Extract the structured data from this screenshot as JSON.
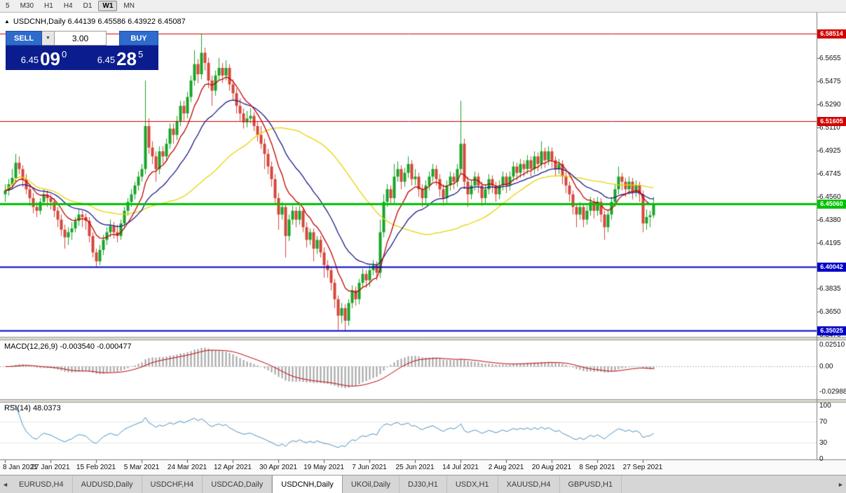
{
  "toolbar": {
    "items": [
      "5",
      "M30",
      "H1",
      "H4",
      "D1",
      "W1",
      "MN"
    ],
    "active": "W1"
  },
  "chart_header": {
    "marker": "▲",
    "text": "USDCNH,Daily 6.44139 6.45586 6.43922 6.45087"
  },
  "trade_widget": {
    "sell_label": "SELL",
    "buy_label": "BUY",
    "lot": "3.00",
    "dropdown_icon": "▼",
    "sell_price": {
      "prefix": "6.45",
      "pips": "09",
      "pipette": "0"
    },
    "buy_price": {
      "prefix": "6.45",
      "pips": "28",
      "pipette": "5"
    }
  },
  "price_axis": {
    "ticks": [
      "6.5655",
      "6.5475",
      "6.5290",
      "6.5110",
      "6.4925",
      "6.4745",
      "6.4560",
      "6.4380",
      "6.4195",
      "6.3835",
      "6.3650",
      "6.3470"
    ]
  },
  "time_axis": {
    "labels": [
      "8 Jan 2021",
      "27 Jan 2021",
      "15 Feb 2021",
      "5 Mar 2021",
      "24 Mar 2021",
      "12 Apr 2021",
      "30 Apr 2021",
      "19 May 2021",
      "7 Jun 2021",
      "25 Jun 2021",
      "14 Jul 2021",
      "2 Aug 2021",
      "20 Aug 2021",
      "8 Sep 2021",
      "27 Sep 2021"
    ]
  },
  "tabs": {
    "left_arrow": "◄",
    "right_arrow": "►",
    "active_index": 4,
    "items": [
      "EURUSD,H4",
      "AUDUSD,Daily",
      "USDCHF,H4",
      "USDCAD,Daily",
      "USDCNH,Daily",
      "UKOil,Daily",
      "DJ30,H1",
      "USDX,H1",
      "XAUUSD,H4",
      "GBPUSD,H1"
    ]
  },
  "chart_data": {
    "type": "candlestick",
    "symbol": "USDCNH",
    "timeframe": "Daily",
    "current_ohlc": {
      "open": "6.44139",
      "high": "6.45586",
      "low": "6.43922",
      "close": "6.45087"
    },
    "x_label_step": 13,
    "candle_colors": {
      "up": "#18a428",
      "down": "#d5473a"
    },
    "hlines": [
      {
        "price": 6.58514,
        "label": "6.58514",
        "color": "#d40000",
        "width": 1
      },
      {
        "price": 6.51605,
        "label": "6.51605",
        "color": "#d40000",
        "width": 1
      },
      {
        "price": 6.4506,
        "label": "6.45060",
        "color": "#00c300",
        "width": 3
      },
      {
        "price": 6.40042,
        "label": "6.40042",
        "color": "#0000c8",
        "width": 2
      },
      {
        "price": 6.35025,
        "label": "6.35025",
        "color": "#0000c8",
        "width": 2
      }
    ],
    "moving_averages": [
      {
        "name": "ma-slow",
        "method": "sma",
        "period": 45,
        "color": "#e8d400"
      },
      {
        "name": "ma-mid",
        "method": "ema",
        "period": 22,
        "color": "#1a1a8a"
      },
      {
        "name": "ma-fast",
        "method": "ema",
        "period": 9,
        "color": "#c00000"
      }
    ],
    "indicators": {
      "macd": {
        "label": "MACD(12,26,9) -0.003540 -0.000477",
        "params": [
          12,
          26,
          9
        ],
        "axis_ticks": [
          "0.02510",
          "0.00",
          "-0.02988"
        ],
        "hist_color": "#a0a0a0",
        "signal_color": "#c00000"
      },
      "rsi": {
        "label": "RSI(14) 48.0373",
        "period": 14,
        "value": "48.0373",
        "axis_ticks": [
          "100",
          "70",
          "30",
          "0"
        ],
        "levels": [
          70,
          30
        ],
        "color": "#4a90c2"
      }
    },
    "candles": [
      [
        6.458,
        6.466,
        6.452,
        6.461
      ],
      [
        6.461,
        6.47,
        6.457,
        6.466
      ],
      [
        6.466,
        6.478,
        6.462,
        6.471
      ],
      [
        6.471,
        6.49,
        6.468,
        6.483
      ],
      [
        6.483,
        6.488,
        6.474,
        6.478
      ],
      [
        6.478,
        6.481,
        6.464,
        6.47
      ],
      [
        6.47,
        6.474,
        6.458,
        6.462
      ],
      [
        6.462,
        6.466,
        6.449,
        6.455
      ],
      [
        6.455,
        6.459,
        6.443,
        6.448
      ],
      [
        6.448,
        6.452,
        6.44,
        6.445
      ],
      [
        6.445,
        6.455,
        6.442,
        6.452
      ],
      [
        6.452,
        6.462,
        6.449,
        6.458
      ],
      [
        6.458,
        6.461,
        6.448,
        6.455
      ],
      [
        6.455,
        6.458,
        6.446,
        6.452
      ],
      [
        6.452,
        6.455,
        6.44,
        6.445
      ],
      [
        6.445,
        6.448,
        6.432,
        6.438
      ],
      [
        6.438,
        6.442,
        6.425,
        6.43
      ],
      [
        6.43,
        6.434,
        6.415,
        6.424
      ],
      [
        6.424,
        6.432,
        6.418,
        6.428
      ],
      [
        6.428,
        6.436,
        6.422,
        6.431
      ],
      [
        6.431,
        6.44,
        6.428,
        6.437
      ],
      [
        6.437,
        6.446,
        6.433,
        6.442
      ],
      [
        6.442,
        6.445,
        6.432,
        6.44
      ],
      [
        6.44,
        6.443,
        6.43,
        6.437
      ],
      [
        6.437,
        6.44,
        6.42,
        6.425
      ],
      [
        6.425,
        6.428,
        6.408,
        6.412
      ],
      [
        6.412,
        6.415,
        6.4,
        6.405
      ],
      [
        6.405,
        6.418,
        6.402,
        6.414
      ],
      [
        6.414,
        6.426,
        6.41,
        6.422
      ],
      [
        6.422,
        6.432,
        6.418,
        6.428
      ],
      [
        6.428,
        6.438,
        6.424,
        6.433
      ],
      [
        6.433,
        6.436,
        6.423,
        6.428
      ],
      [
        6.428,
        6.434,
        6.42,
        6.425
      ],
      [
        6.425,
        6.438,
        6.422,
        6.435
      ],
      [
        6.435,
        6.448,
        6.431,
        6.445
      ],
      [
        6.445,
        6.455,
        6.441,
        6.452
      ],
      [
        6.452,
        6.462,
        6.448,
        6.458
      ],
      [
        6.458,
        6.468,
        6.454,
        6.465
      ],
      [
        6.465,
        6.476,
        6.461,
        6.472
      ],
      [
        6.472,
        6.482,
        6.468,
        6.478
      ],
      [
        6.478,
        6.548,
        6.474,
        6.512
      ],
      [
        6.512,
        6.518,
        6.49,
        6.495
      ],
      [
        6.495,
        6.5,
        6.482,
        6.488
      ],
      [
        6.488,
        6.492,
        6.468,
        6.478
      ],
      [
        6.478,
        6.496,
        6.474,
        6.492
      ],
      [
        6.492,
        6.496,
        6.482,
        6.488
      ],
      [
        6.488,
        6.502,
        6.484,
        6.498
      ],
      [
        6.498,
        6.514,
        6.494,
        6.51
      ],
      [
        6.51,
        6.514,
        6.498,
        6.505
      ],
      [
        6.505,
        6.52,
        6.501,
        6.516
      ],
      [
        6.516,
        6.532,
        6.512,
        6.528
      ],
      [
        6.528,
        6.532,
        6.516,
        6.522
      ],
      [
        6.522,
        6.539,
        6.518,
        6.535
      ],
      [
        6.535,
        6.552,
        6.531,
        6.548
      ],
      [
        6.548,
        6.572,
        6.544,
        6.561
      ],
      [
        6.561,
        6.565,
        6.546,
        6.553
      ],
      [
        6.553,
        6.585,
        6.549,
        6.57
      ],
      [
        6.57,
        6.574,
        6.556,
        6.562
      ],
      [
        6.562,
        6.566,
        6.542,
        6.548
      ],
      [
        6.548,
        6.552,
        6.528,
        6.54
      ],
      [
        6.54,
        6.556,
        6.536,
        6.552
      ],
      [
        6.552,
        6.566,
        6.548,
        6.558
      ],
      [
        6.558,
        6.562,
        6.546,
        6.552
      ],
      [
        6.552,
        6.564,
        6.548,
        6.558
      ],
      [
        6.558,
        6.561,
        6.54,
        6.545
      ],
      [
        6.545,
        6.549,
        6.532,
        6.538
      ],
      [
        6.538,
        6.542,
        6.522,
        6.528
      ],
      [
        6.528,
        6.534,
        6.516,
        6.522
      ],
      [
        6.522,
        6.526,
        6.51,
        6.515
      ],
      [
        6.515,
        6.524,
        6.511,
        6.518
      ],
      [
        6.518,
        6.526,
        6.514,
        6.52
      ],
      [
        6.52,
        6.523,
        6.508,
        6.512
      ],
      [
        6.512,
        6.516,
        6.5,
        6.505
      ],
      [
        6.505,
        6.512,
        6.494,
        6.498
      ],
      [
        6.498,
        6.502,
        6.478,
        6.49
      ],
      [
        6.49,
        6.494,
        6.474,
        6.48
      ],
      [
        6.48,
        6.484,
        6.464,
        6.47
      ],
      [
        6.47,
        6.474,
        6.45,
        6.455
      ],
      [
        6.455,
        6.459,
        6.43,
        6.442
      ],
      [
        6.442,
        6.452,
        6.438,
        6.448
      ],
      [
        6.448,
        6.451,
        6.408,
        6.425
      ],
      [
        6.425,
        6.442,
        6.421,
        6.438
      ],
      [
        6.438,
        6.449,
        6.434,
        6.445
      ],
      [
        6.445,
        6.448,
        6.432,
        6.438
      ],
      [
        6.438,
        6.449,
        6.434,
        6.445
      ],
      [
        6.445,
        6.448,
        6.428,
        6.432
      ],
      [
        6.432,
        6.436,
        6.416,
        6.422
      ],
      [
        6.422,
        6.431,
        6.418,
        6.428
      ],
      [
        6.428,
        6.431,
        6.405,
        6.415
      ],
      [
        6.415,
        6.425,
        6.411,
        6.422
      ],
      [
        6.422,
        6.425,
        6.408,
        6.412
      ],
      [
        6.412,
        6.416,
        6.392,
        6.402
      ],
      [
        6.402,
        6.406,
        6.392,
        6.398
      ],
      [
        6.398,
        6.401,
        6.382,
        6.388
      ],
      [
        6.388,
        6.391,
        6.368,
        6.375
      ],
      [
        6.375,
        6.378,
        6.3505,
        6.362
      ],
      [
        6.362,
        6.372,
        6.356,
        6.368
      ],
      [
        6.368,
        6.371,
        6.3503,
        6.358
      ],
      [
        6.358,
        6.375,
        6.354,
        6.372
      ],
      [
        6.372,
        6.386,
        6.368,
        6.382
      ],
      [
        6.382,
        6.385,
        6.37,
        6.375
      ],
      [
        6.375,
        6.391,
        6.371,
        6.388
      ],
      [
        6.388,
        6.399,
        6.384,
        6.395
      ],
      [
        6.395,
        6.398,
        6.384,
        6.39
      ],
      [
        6.39,
        6.402,
        6.385,
        6.398
      ],
      [
        6.398,
        6.406,
        6.394,
        6.402
      ],
      [
        6.402,
        6.405,
        6.39,
        6.396
      ],
      [
        6.396,
        6.438,
        6.392,
        6.428
      ],
      [
        6.428,
        6.458,
        6.424,
        6.452
      ],
      [
        6.452,
        6.466,
        6.448,
        6.462
      ],
      [
        6.462,
        6.465,
        6.45,
        6.455
      ],
      [
        6.455,
        6.482,
        6.451,
        6.472
      ],
      [
        6.472,
        6.484,
        6.468,
        6.478
      ],
      [
        6.478,
        6.481,
        6.462,
        6.468
      ],
      [
        6.468,
        6.479,
        6.464,
        6.475
      ],
      [
        6.475,
        6.488,
        6.471,
        6.482
      ],
      [
        6.482,
        6.485,
        6.465,
        6.47
      ],
      [
        6.47,
        6.478,
        6.465,
        6.472
      ],
      [
        6.472,
        6.475,
        6.456,
        6.462
      ],
      [
        6.462,
        6.466,
        6.448,
        6.455
      ],
      [
        6.455,
        6.469,
        6.451,
        6.465
      ],
      [
        6.465,
        6.476,
        6.461,
        6.472
      ],
      [
        6.472,
        6.482,
        6.468,
        6.478
      ],
      [
        6.478,
        6.481,
        6.465,
        6.47
      ],
      [
        6.47,
        6.474,
        6.456,
        6.462
      ],
      [
        6.462,
        6.466,
        6.449,
        6.455
      ],
      [
        6.455,
        6.469,
        6.451,
        6.465
      ],
      [
        6.465,
        6.476,
        6.461,
        6.472
      ],
      [
        6.472,
        6.475,
        6.462,
        6.468
      ],
      [
        6.468,
        6.482,
        6.464,
        6.478
      ],
      [
        6.478,
        6.532,
        6.474,
        6.498
      ],
      [
        6.498,
        6.502,
        6.462,
        6.468
      ],
      [
        6.468,
        6.472,
        6.448,
        6.458
      ],
      [
        6.458,
        6.469,
        6.454,
        6.465
      ],
      [
        6.465,
        6.476,
        6.461,
        6.472
      ],
      [
        6.472,
        6.475,
        6.459,
        6.465
      ],
      [
        6.465,
        6.468,
        6.449,
        6.455
      ],
      [
        6.455,
        6.466,
        6.451,
        6.462
      ],
      [
        6.462,
        6.474,
        6.458,
        6.47
      ],
      [
        6.47,
        6.473,
        6.459,
        6.465
      ],
      [
        6.465,
        6.468,
        6.452,
        6.458
      ],
      [
        6.458,
        6.469,
        6.454,
        6.465
      ],
      [
        6.465,
        6.476,
        6.461,
        6.472
      ],
      [
        6.472,
        6.475,
        6.459,
        6.465
      ],
      [
        6.465,
        6.476,
        6.461,
        6.472
      ],
      [
        6.472,
        6.484,
        6.468,
        6.48
      ],
      [
        6.48,
        6.483,
        6.469,
        6.475
      ],
      [
        6.475,
        6.486,
        6.471,
        6.482
      ],
      [
        6.482,
        6.485,
        6.472,
        6.478
      ],
      [
        6.478,
        6.489,
        6.474,
        6.485
      ],
      [
        6.485,
        6.488,
        6.472,
        6.478
      ],
      [
        6.478,
        6.492,
        6.474,
        6.488
      ],
      [
        6.488,
        6.491,
        6.476,
        6.482
      ],
      [
        6.482,
        6.5,
        6.478,
        6.492
      ],
      [
        6.492,
        6.495,
        6.479,
        6.485
      ],
      [
        6.485,
        6.496,
        6.481,
        6.492
      ],
      [
        6.492,
        6.495,
        6.479,
        6.485
      ],
      [
        6.485,
        6.488,
        6.472,
        6.478
      ],
      [
        6.478,
        6.486,
        6.474,
        6.482
      ],
      [
        6.482,
        6.485,
        6.466,
        6.472
      ],
      [
        6.472,
        6.476,
        6.459,
        6.465
      ],
      [
        6.465,
        6.468,
        6.452,
        6.458
      ],
      [
        6.458,
        6.461,
        6.442,
        6.448
      ],
      [
        6.448,
        6.451,
        6.432,
        6.442
      ],
      [
        6.442,
        6.452,
        6.438,
        6.448
      ],
      [
        6.448,
        6.451,
        6.432,
        6.438
      ],
      [
        6.438,
        6.449,
        6.434,
        6.445
      ],
      [
        6.445,
        6.456,
        6.441,
        6.452
      ],
      [
        6.452,
        6.455,
        6.439,
        6.445
      ],
      [
        6.445,
        6.456,
        6.441,
        6.452
      ],
      [
        6.452,
        6.455,
        6.436,
        6.442
      ],
      [
        6.442,
        6.445,
        6.422,
        6.432
      ],
      [
        6.432,
        6.446,
        6.428,
        6.442
      ],
      [
        6.442,
        6.456,
        6.438,
        6.452
      ],
      [
        6.452,
        6.466,
        6.448,
        6.462
      ],
      [
        6.462,
        6.48,
        6.458,
        6.472
      ],
      [
        6.472,
        6.475,
        6.461,
        6.468
      ],
      [
        6.468,
        6.471,
        6.456,
        6.462
      ],
      [
        6.462,
        6.472,
        6.458,
        6.468
      ],
      [
        6.468,
        6.471,
        6.454,
        6.46
      ],
      [
        6.46,
        6.469,
        6.456,
        6.465
      ],
      [
        6.465,
        6.468,
        6.452,
        6.458
      ],
      [
        6.458,
        6.461,
        6.428,
        6.435
      ],
      [
        6.435,
        6.446,
        6.43,
        6.44
      ],
      [
        6.44,
        6.445,
        6.432,
        6.4414
      ],
      [
        6.4414,
        6.45586,
        6.43922,
        6.45087
      ]
    ]
  }
}
